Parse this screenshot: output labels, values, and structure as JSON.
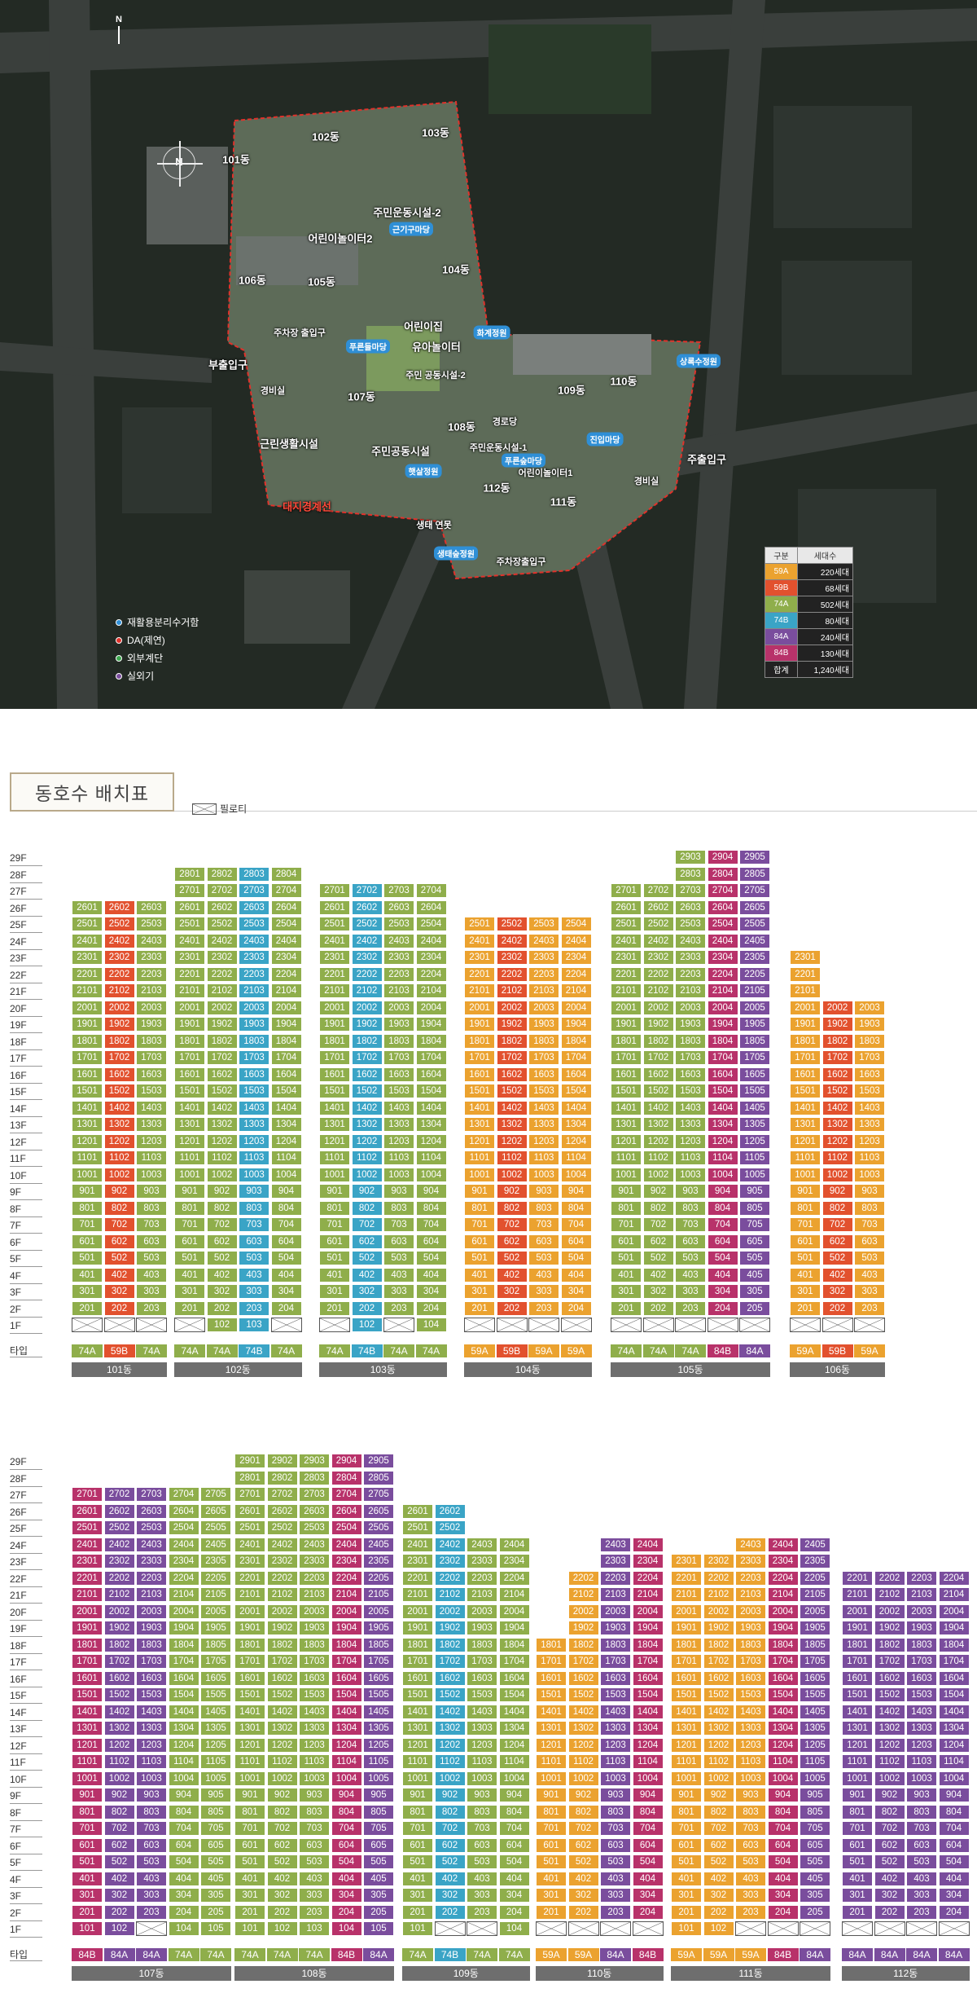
{
  "colors": {
    "59A": "#eba22f",
    "59B": "#e2512e",
    "74A": "#8fae4b",
    "74B": "#3aa4c6",
    "84A": "#7a4d9d",
    "84B": "#b8326a"
  },
  "map": {
    "north": "N",
    "compass": "N",
    "labels": {
      "d101": "101동",
      "d102": "102동",
      "d103": "103동",
      "d104": "104동",
      "d105": "105동",
      "d106": "106동",
      "d107": "107동",
      "d108": "108동",
      "d109": "109동",
      "d110": "110동",
      "d111": "111동",
      "d112": "112동",
      "community2": "주민운동시설-2",
      "playground2": "어린이놀이터2",
      "daycare": "어린이집",
      "kidsplay": "유아놀이터",
      "community_sports2": "주민\n공동시설-2",
      "parking_entrance": "주차장\n출입구",
      "side_entrance": "부출입구",
      "guard1": "경비실",
      "neighborhood": "근린생활시설",
      "community_sports": "주민공동시설",
      "guard2": "경로당",
      "community1": "주민운동시설-1",
      "playground1": "어린이놀이터1",
      "main_entrance": "주출입구",
      "guard3": "경비실",
      "parking_exit": "주차장출입구",
      "boundary": "대지경계선",
      "eco": "생태 연못",
      "garden1": "근기구마당",
      "garden2": "푸른들마당",
      "garden3": "화계정원",
      "garden4": "상록수정원",
      "garden5": "진입마당",
      "garden6": "푸른숲마당",
      "garden7": "햇살정원",
      "garden8": "생태숲정원"
    }
  },
  "facility_legend": [
    {
      "label": "재활용분리수거함",
      "color": "#2f8fd6"
    },
    {
      "label": "DA(제연)",
      "color": "#e0322b"
    },
    {
      "label": "외부계단",
      "color": "#3da84f"
    },
    {
      "label": "실외기",
      "color": "#7a4d9d"
    }
  ],
  "type_table": {
    "headers": [
      "구분",
      "세대수"
    ],
    "rows": [
      {
        "type": "59A",
        "count": "220세대"
      },
      {
        "type": "59B",
        "count": "68세대"
      },
      {
        "type": "74A",
        "count": "502세대"
      },
      {
        "type": "74B",
        "count": "80세대"
      },
      {
        "type": "84A",
        "count": "240세대"
      },
      {
        "type": "84B",
        "count": "130세대"
      },
      {
        "type": "합계",
        "count": "1,240세대"
      }
    ]
  },
  "section_title": "동호수 배치표",
  "piloti_label": "필로티",
  "type_row_label": "타입",
  "blocks_top": [
    {
      "name": "101동",
      "top": 26,
      "piloti": [
        1,
        2,
        3
      ],
      "lines": [
        {
          "n": 1,
          "t": "74A"
        },
        {
          "n": 2,
          "t": "59B"
        },
        {
          "n": 3,
          "t": "74A"
        }
      ]
    },
    {
      "name": "102동",
      "top": 28,
      "piloti": [
        1,
        4
      ],
      "lines": [
        {
          "n": 1,
          "t": "74A"
        },
        {
          "n": 2,
          "t": "74A"
        },
        {
          "n": 3,
          "t": "74B"
        },
        {
          "n": 4,
          "t": "74A"
        }
      ]
    },
    {
      "name": "103동",
      "top": 27,
      "piloti": [
        1,
        3
      ],
      "lines": [
        {
          "n": 1,
          "t": "74A"
        },
        {
          "n": 2,
          "t": "74B"
        },
        {
          "n": 3,
          "t": "74A"
        },
        {
          "n": 4,
          "t": "74A"
        }
      ]
    },
    {
      "name": "104동",
      "top": 25,
      "piloti": [
        1,
        2,
        3,
        4
      ],
      "lines": [
        {
          "n": 1,
          "t": "59A"
        },
        {
          "n": 2,
          "t": "59B"
        },
        {
          "n": 3,
          "t": "59A"
        },
        {
          "n": 4,
          "t": "59A"
        }
      ]
    },
    {
      "name": "105동",
      "top": 27,
      "top_per_line": [
        27,
        27,
        29,
        29,
        29
      ],
      "piloti": [
        1,
        2,
        3,
        4,
        5
      ],
      "lines": [
        {
          "n": 1,
          "t": "74A"
        },
        {
          "n": 2,
          "t": "74A"
        },
        {
          "n": 3,
          "t": "74A"
        },
        {
          "n": 4,
          "t": "84B"
        },
        {
          "n": 5,
          "t": "84A"
        }
      ]
    },
    {
      "name": "106동",
      "top": 20,
      "top_per_line": [
        23,
        20,
        20
      ],
      "piloti": [
        1,
        2,
        3
      ],
      "lines": [
        {
          "n": 1,
          "t": "59A"
        },
        {
          "n": 2,
          "t": "59B"
        },
        {
          "n": 3,
          "t": "59A"
        }
      ]
    }
  ],
  "blocks_bottom": [
    {
      "name": "107동",
      "top": 27,
      "piloti": [
        3
      ],
      "lines": [
        {
          "n": 1,
          "t": "84B"
        },
        {
          "n": 2,
          "t": "84A"
        },
        {
          "n": 3,
          "t": "84A"
        },
        {
          "n": 4,
          "t": "74A"
        },
        {
          "n": 5,
          "t": "74A"
        }
      ]
    },
    {
      "name": "108동",
      "top": 29,
      "piloti": [],
      "lines": [
        {
          "n": 1,
          "t": "74A"
        },
        {
          "n": 2,
          "t": "74A"
        },
        {
          "n": 3,
          "t": "74A"
        },
        {
          "n": 4,
          "t": "84B"
        },
        {
          "n": 5,
          "t": "84A"
        }
      ]
    },
    {
      "name": "109동",
      "top": 24,
      "top_per_line": [
        26,
        26,
        24,
        24
      ],
      "piloti": [
        2,
        3
      ],
      "lines": [
        {
          "n": 1,
          "t": "74A"
        },
        {
          "n": 2,
          "t": "74B"
        },
        {
          "n": 3,
          "t": "74A"
        },
        {
          "n": 4,
          "t": "74A"
        }
      ]
    },
    {
      "name": "110동",
      "top": 24,
      "top_per_line": [
        18,
        22,
        24,
        24
      ],
      "piloti": [
        1,
        2,
        3,
        4
      ],
      "lines": [
        {
          "n": 1,
          "t": "59A"
        },
        {
          "n": 2,
          "t": "59A"
        },
        {
          "n": 3,
          "t": "84A"
        },
        {
          "n": 4,
          "t": "84B"
        }
      ]
    },
    {
      "name": "111동",
      "top": 24,
      "top_per_line": [
        23,
        23,
        24,
        24,
        24
      ],
      "piloti": [
        3,
        4,
        5
      ],
      "lines": [
        {
          "n": 1,
          "t": "59A"
        },
        {
          "n": 2,
          "t": "59A"
        },
        {
          "n": 3,
          "t": "59A"
        },
        {
          "n": 4,
          "t": "84B"
        },
        {
          "n": 5,
          "t": "84A"
        }
      ]
    },
    {
      "name": "112동",
      "top": 22,
      "piloti": [
        1,
        2,
        3,
        4
      ],
      "lines": [
        {
          "n": 1,
          "t": "84A"
        },
        {
          "n": 2,
          "t": "84A"
        },
        {
          "n": 3,
          "t": "84A"
        },
        {
          "n": 4,
          "t": "84A"
        }
      ]
    }
  ]
}
